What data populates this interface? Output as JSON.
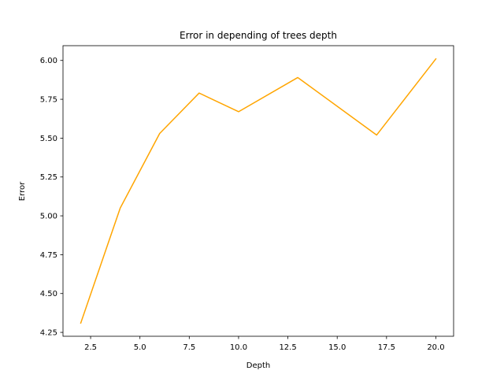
{
  "chart_data": {
    "type": "line",
    "title": "Error in depending of trees depth",
    "xlabel": "Depth",
    "ylabel": "Error",
    "xlim": [
      1.1,
      20.9
    ],
    "ylim": [
      4.225,
      6.095
    ],
    "xticks": [
      2.5,
      5.0,
      7.5,
      10.0,
      12.5,
      15.0,
      17.5,
      20.0
    ],
    "xtick_labels": [
      "2.5",
      "5.0",
      "7.5",
      "10.0",
      "12.5",
      "15.0",
      "17.5",
      "20.0"
    ],
    "yticks": [
      4.25,
      4.5,
      4.75,
      5.0,
      5.25,
      5.5,
      5.75,
      6.0
    ],
    "ytick_labels": [
      "4.25",
      "4.50",
      "4.75",
      "5.00",
      "5.25",
      "5.50",
      "5.75",
      "6.00"
    ],
    "grid": false,
    "series": [
      {
        "color": "#ffa500",
        "x": [
          2,
          4,
          6,
          8,
          10,
          13,
          17,
          20
        ],
        "y": [
          4.31,
          5.05,
          5.53,
          5.79,
          5.67,
          5.89,
          5.52,
          6.01
        ]
      }
    ]
  }
}
